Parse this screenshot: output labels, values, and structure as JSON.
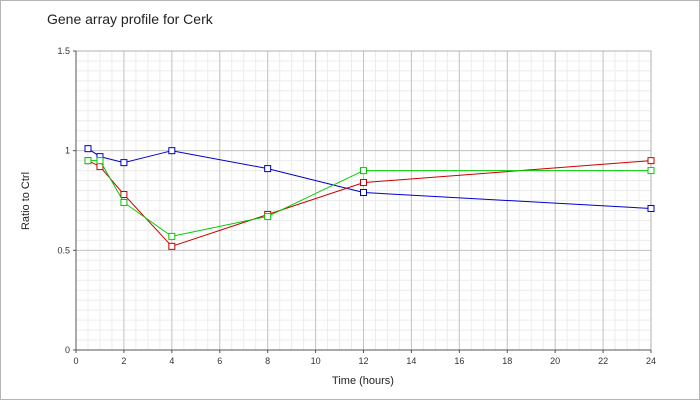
{
  "chart_data": {
    "type": "line",
    "title": "Gene array profile for Cerk",
    "xlabel": "Time (hours)",
    "ylabel": "Ratio to Ctrl",
    "xlim": [
      0,
      24
    ],
    "ylim": [
      0,
      1.5
    ],
    "x_ticks": [
      "0",
      "2",
      "4",
      "6",
      "8",
      "10",
      "12",
      "14",
      "16",
      "18",
      "20",
      "22",
      "24"
    ],
    "y_ticks": [
      "0",
      "0.5",
      "1",
      "1.5"
    ],
    "grid": true,
    "legend": "none",
    "series": [
      {
        "color": "#0000cc",
        "marker": "square",
        "x": [
          0.5,
          1,
          2,
          4,
          8,
          12,
          24
        ],
        "values": [
          1.01,
          0.97,
          0.94,
          1.0,
          0.91,
          0.79,
          0.71
        ]
      },
      {
        "color": "#cc0000",
        "marker": "square",
        "x": [
          0.5,
          1,
          2,
          4,
          8,
          12,
          24
        ],
        "values": [
          0.95,
          0.92,
          0.78,
          0.52,
          0.68,
          0.84,
          0.95
        ]
      },
      {
        "color": "#00cc00",
        "marker": "square",
        "x": [
          0.5,
          1,
          2,
          4,
          8,
          12,
          24
        ],
        "values": [
          0.95,
          0.95,
          0.74,
          0.57,
          0.67,
          0.9,
          0.9
        ]
      }
    ]
  }
}
